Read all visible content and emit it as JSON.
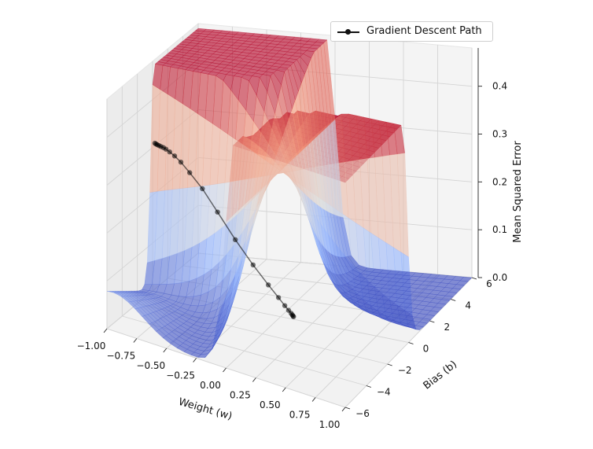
{
  "chart_data": {
    "type": "surface3d",
    "xlabel": "Weight (w)",
    "ylabel": "Bias (b)",
    "zlabel": "Mean Squared Error",
    "xlim": [
      -1.0,
      1.0
    ],
    "ylim": [
      -6,
      6
    ],
    "zlim": [
      0.0,
      0.48
    ],
    "x_ticks": [
      "−1.00",
      "−0.75",
      "−0.50",
      "−0.25",
      "0.00",
      "0.25",
      "0.50",
      "0.75",
      "1.00"
    ],
    "y_ticks": [
      "−6",
      "−4",
      "−2",
      "0",
      "2",
      "4",
      "6"
    ],
    "z_ticks": [
      "0.0",
      "0.1",
      "0.2",
      "0.3",
      "0.4"
    ],
    "colormap": "coolwarm",
    "surface_alpha": 0.6,
    "legend": {
      "position": "top-right",
      "entries": [
        "Gradient Descent Path"
      ]
    },
    "path": {
      "name": "Gradient Descent Path",
      "color": "#000000",
      "w": [
        -1.0,
        -0.99,
        -0.98,
        -0.965,
        -0.95,
        -0.93,
        -0.91,
        -0.88,
        -0.84,
        -0.79,
        -0.72,
        -0.62,
        -0.5,
        -0.36,
        -0.22,
        -0.1,
        -0.02,
        0.03,
        0.06,
        0.08,
        0.09,
        0.095,
        0.1
      ],
      "b": [
        0.3,
        0.29,
        0.28,
        0.27,
        0.26,
        0.25,
        0.24,
        0.22,
        0.2,
        0.18,
        0.16,
        0.14,
        0.12,
        0.1,
        0.08,
        0.06,
        0.05,
        0.04,
        0.035,
        0.03,
        0.028,
        0.026,
        0.025
      ],
      "mse": [
        0.305,
        0.304,
        0.303,
        0.302,
        0.301,
        0.3,
        0.298,
        0.294,
        0.288,
        0.278,
        0.26,
        0.232,
        0.19,
        0.14,
        0.095,
        0.06,
        0.038,
        0.024,
        0.016,
        0.011,
        0.008,
        0.006,
        0.005
      ]
    }
  }
}
